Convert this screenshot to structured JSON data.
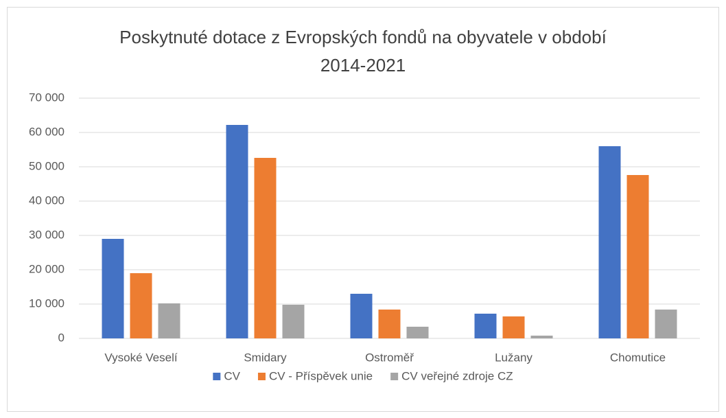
{
  "chart_data": {
    "type": "bar",
    "title": [
      "Poskytnuté dotace z Evropských fondů na obyvatele v období",
      "2014-2021"
    ],
    "categories": [
      "Vysoké Veselí",
      "Smidary",
      "Ostroměř",
      "Lužany",
      "Chomutice"
    ],
    "series": [
      {
        "name": "CV",
        "color": "#4472c4",
        "values": [
          29000,
          62200,
          13000,
          7200,
          56000
        ]
      },
      {
        "name": "CV - Příspěvek unie",
        "color": "#ed7d31",
        "values": [
          19000,
          52600,
          8400,
          6400,
          47600
        ]
      },
      {
        "name": "CV veřejné zdroje CZ",
        "color": "#a5a5a5",
        "values": [
          10200,
          9800,
          3400,
          800,
          8400
        ]
      }
    ],
    "ylim": [
      0,
      70000
    ],
    "yticks": [
      0,
      {
        "value": 10000,
        "label": "10 000"
      },
      {
        "value": 20000,
        "label": "20 000"
      },
      {
        "value": 30000,
        "label": "30 000"
      },
      {
        "value": 40000,
        "label": "40 000"
      },
      {
        "value": 50000,
        "label": "50 000"
      },
      {
        "value": 60000,
        "label": "60 000"
      },
      {
        "value": 70000,
        "label": "70 000"
      }
    ],
    "grid": true,
    "legend": "bottom"
  }
}
